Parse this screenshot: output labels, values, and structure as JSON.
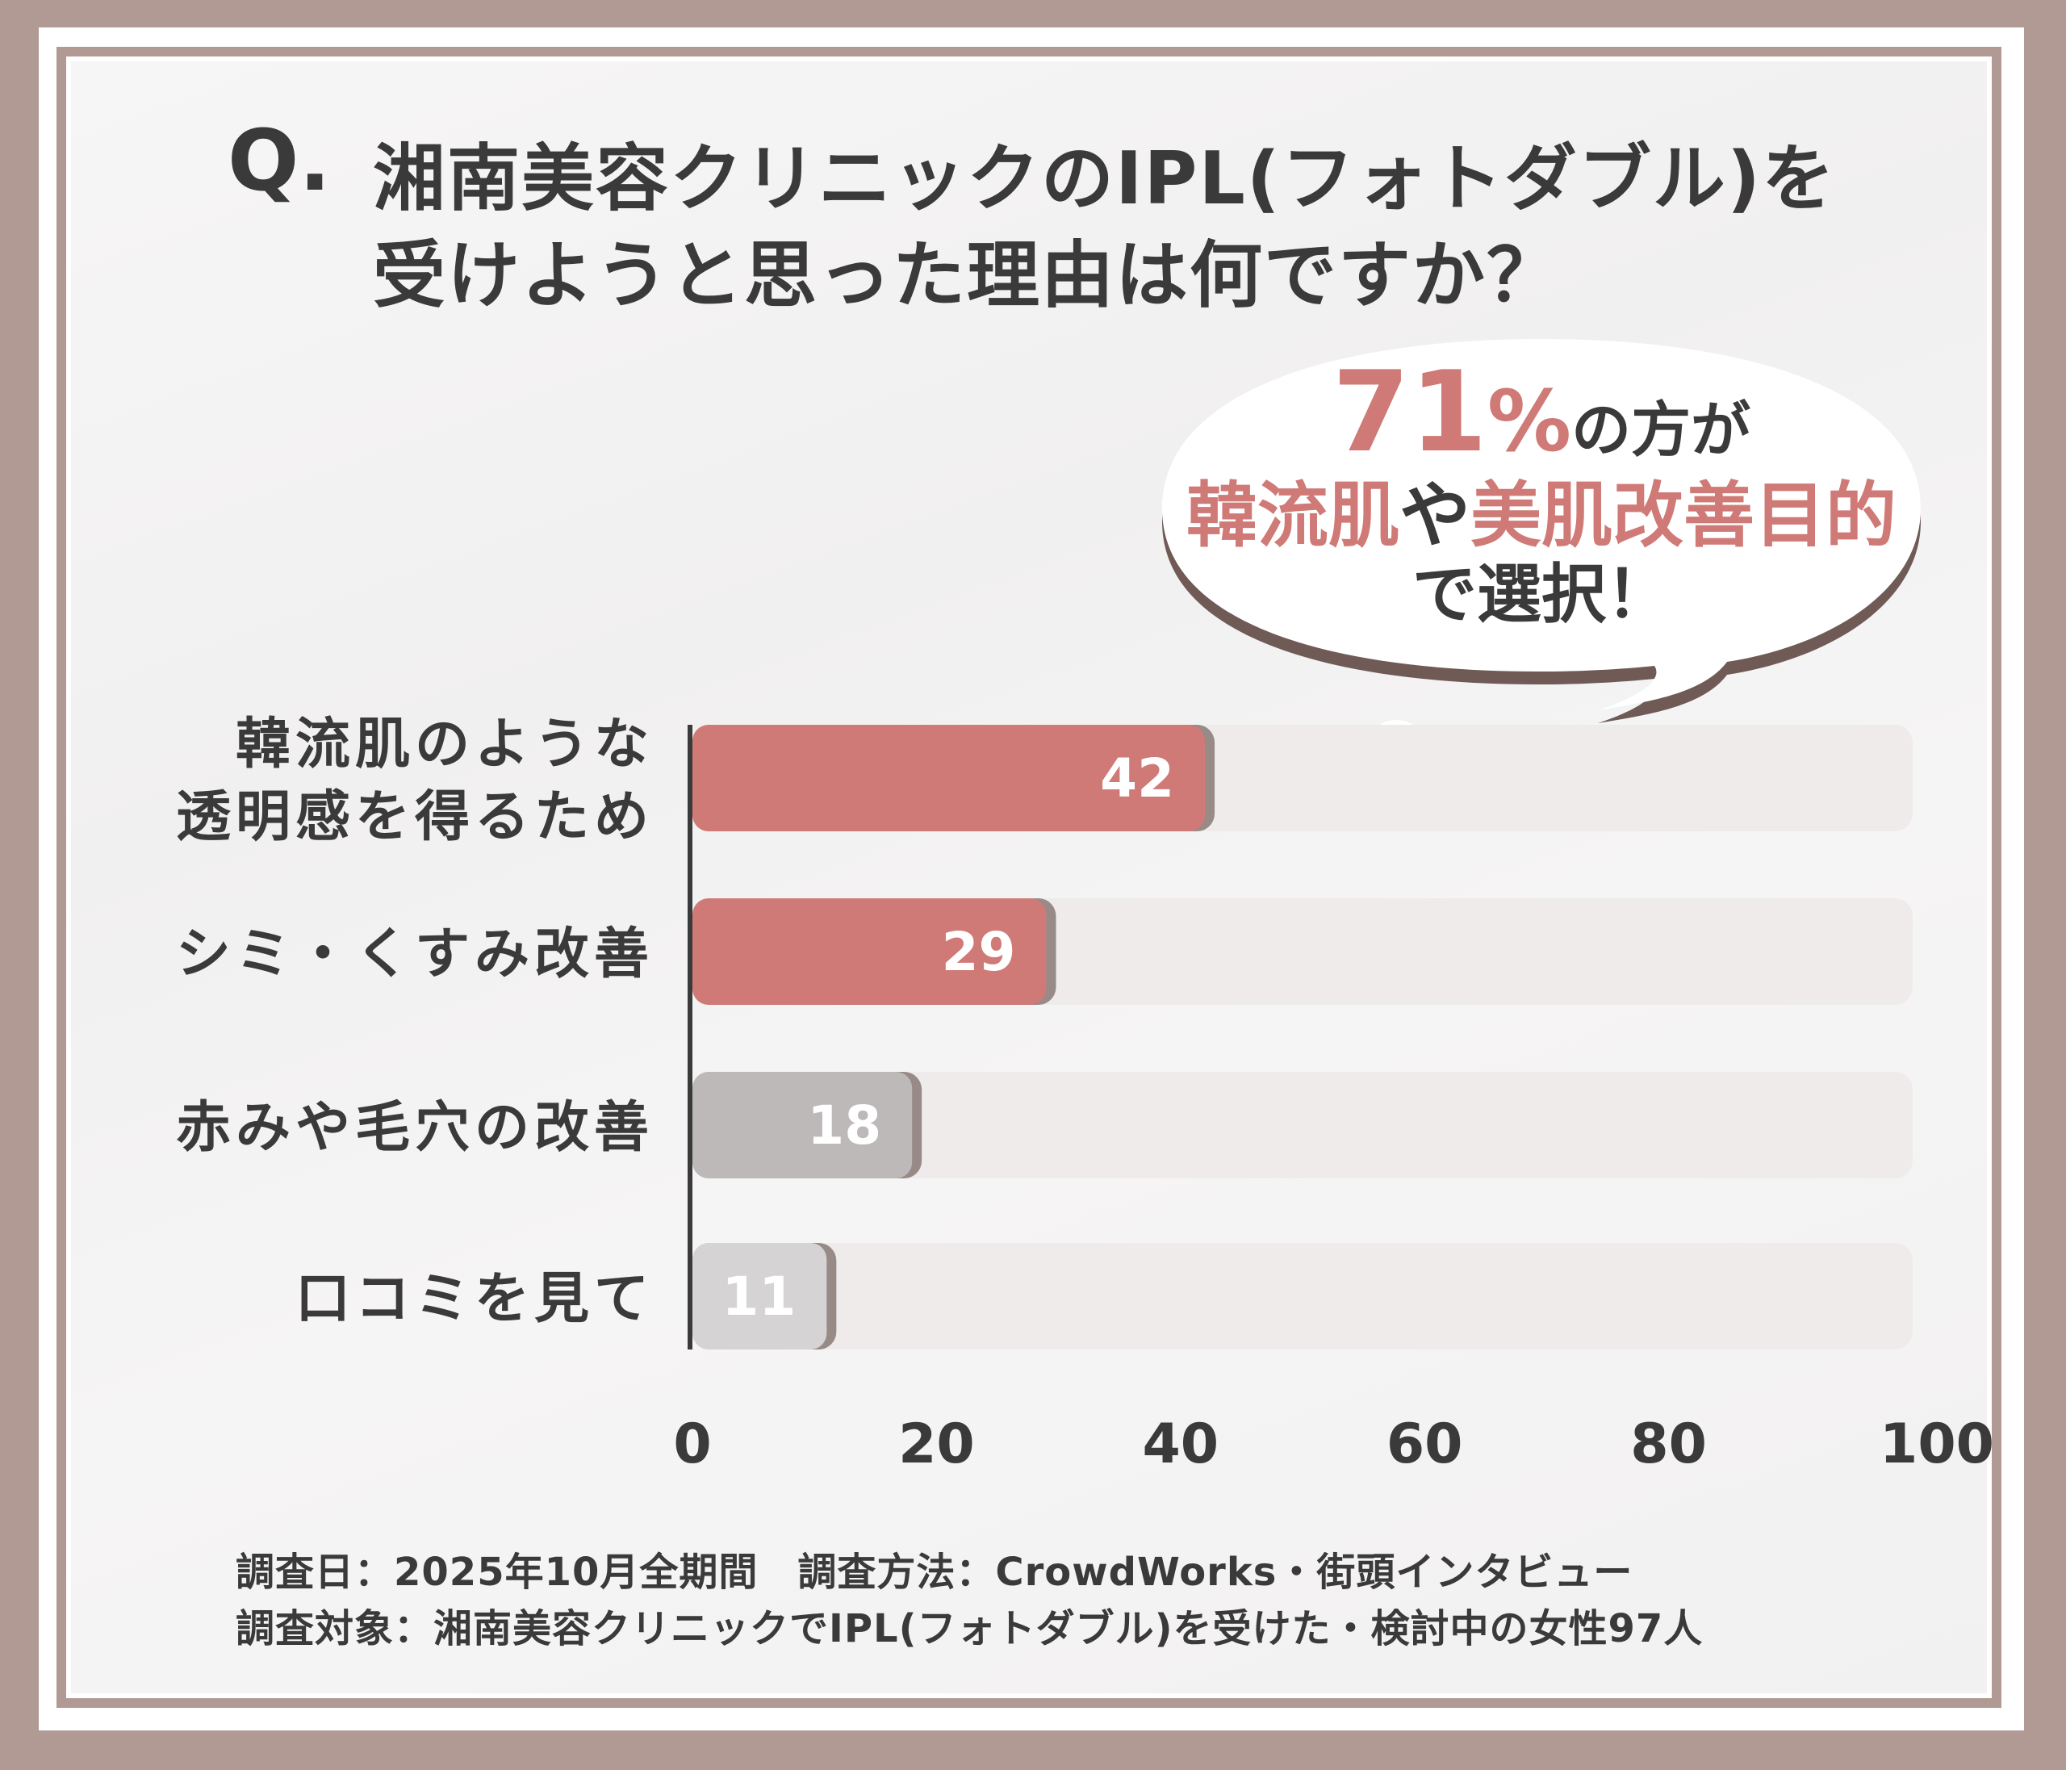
{
  "title": {
    "q_mark": "Q.",
    "line1": "湘南美容クリニックのIPL(フォトダブル)を",
    "line2": "受けようと思った理由は何ですか？"
  },
  "callout": {
    "big_number": "71",
    "percent": "%",
    "line1_rest": "の方が",
    "line2_highlight_1": "韓流肌",
    "line2_connector": "や",
    "line2_highlight_2": "美肌改善目的",
    "line3": "で選択！"
  },
  "footer": {
    "line1": "調査日：2025年10月全期間　調査方法：CrowdWorks・街頭インタビュー",
    "line2": "調査対象：湘南美容クリニックでIPL(フォトダブル)を受けた・検討中の女性97人"
  },
  "colors": {
    "accent": "#cf7a76",
    "gray_bar": "#bcb9b8",
    "light_bar": "#d5d3d3",
    "track": "#efebeb",
    "frame": "#b09a93",
    "text": "#3a3a3a"
  },
  "chart_data": {
    "type": "bar",
    "orientation": "horizontal",
    "categories": [
      [
        "韓流肌のような",
        "透明感を得るため"
      ],
      [
        "シミ・くすみ改善"
      ],
      [
        "赤みや毛穴の改善"
      ],
      [
        "口コミを見て"
      ]
    ],
    "values": [
      42,
      29,
      18,
      11
    ],
    "bar_colors": [
      "#cf7a76",
      "#cf7a76",
      "#bcb9b8",
      "#d5d3d3"
    ],
    "xlim": [
      0,
      100
    ],
    "xticks": [
      0,
      20,
      40,
      60,
      80,
      100
    ],
    "grid": false,
    "legend": "none"
  }
}
